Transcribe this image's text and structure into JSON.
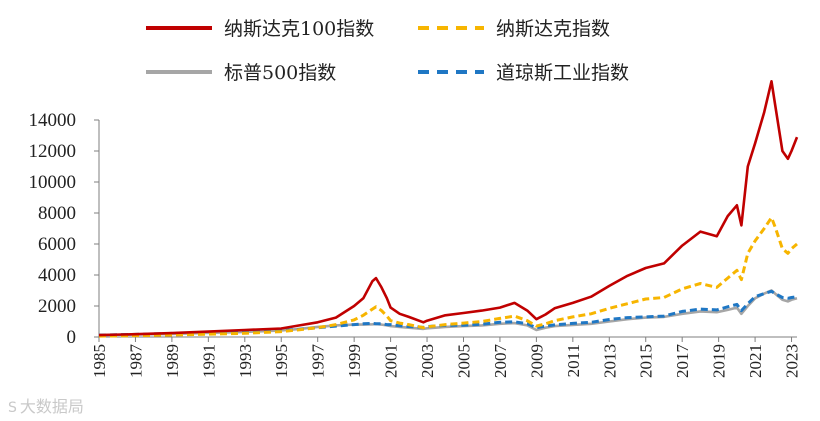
{
  "chart_data": {
    "type": "line",
    "title": "",
    "xlabel": "",
    "ylabel": "",
    "xlim": [
      1985,
      2023.3
    ],
    "ylim": [
      0,
      14000
    ],
    "yticks": [
      0,
      2000,
      4000,
      6000,
      8000,
      10000,
      12000,
      14000
    ],
    "xticks": [
      "1985",
      "1987",
      "1989",
      "1991",
      "1993",
      "1995",
      "1997",
      "1999",
      "2001",
      "2003",
      "2005",
      "2007",
      "2009",
      "2011",
      "2013",
      "2015",
      "2017",
      "2019",
      "2021",
      "2023"
    ],
    "grid": false,
    "legend_position": "top",
    "series": [
      {
        "name": "纳斯达克100指数",
        "color": "#c00000",
        "style": "solid",
        "x": [
          1985,
          1987,
          1989,
          1991,
          1993,
          1995,
          1996,
          1997,
          1998,
          1999,
          1999.5,
          2000,
          2000.2,
          2000.5,
          2000.8,
          2001,
          2001.5,
          2002,
          2002.8,
          2003,
          2004,
          2005,
          2006,
          2007,
          2007.8,
          2008.5,
          2009,
          2009.5,
          2010,
          2011,
          2012,
          2013,
          2014,
          2015,
          2016,
          2017,
          2018,
          2018.9,
          2019.5,
          2020,
          2020.25,
          2020.6,
          2021,
          2021.5,
          2021.9,
          2022.1,
          2022.5,
          2022.8,
          2023,
          2023.3
        ],
        "values": [
          120,
          180,
          250,
          350,
          450,
          550,
          750,
          950,
          1250,
          2000,
          2500,
          3600,
          3800,
          3200,
          2500,
          1900,
          1500,
          1300,
          950,
          1050,
          1400,
          1550,
          1700,
          1900,
          2200,
          1700,
          1150,
          1450,
          1850,
          2200,
          2600,
          3300,
          3950,
          4450,
          4750,
          5900,
          6800,
          6500,
          7800,
          8500,
          7200,
          11000,
          12500,
          14500,
          16500,
          15000,
          12000,
          11500,
          12000,
          12900
        ]
      },
      {
        "name": "纳斯达克指数",
        "color": "#f7b500",
        "style": "dashed",
        "x": [
          1985,
          1987,
          1989,
          1991,
          1993,
          1995,
          1996,
          1997,
          1998,
          1999,
          1999.5,
          2000,
          2000.2,
          2000.5,
          2000.8,
          2001,
          2001.5,
          2002,
          2002.8,
          2003,
          2004,
          2005,
          2006,
          2007,
          2007.8,
          2008.5,
          2009,
          2009.5,
          2010,
          2011,
          2012,
          2013,
          2014,
          2015,
          2016,
          2017,
          2018,
          2018.9,
          2019.5,
          2020,
          2020.25,
          2020.6,
          2021,
          2021.5,
          2021.9,
          2022.1,
          2022.5,
          2022.8,
          2023,
          2023.3
        ],
        "values": [
          60,
          90,
          130,
          180,
          240,
          350,
          470,
          600,
          800,
          1100,
          1400,
          1800,
          1950,
          1700,
          1350,
          1050,
          900,
          800,
          600,
          650,
          800,
          900,
          1000,
          1200,
          1350,
          1050,
          700,
          850,
          1050,
          1300,
          1500,
          1850,
          2150,
          2450,
          2550,
          3100,
          3450,
          3200,
          3800,
          4300,
          3700,
          5400,
          6200,
          7000,
          7700,
          7100,
          5700,
          5400,
          5700,
          6000
        ]
      },
      {
        "name": "标普500指数",
        "color": "#a6a6a6",
        "style": "solid",
        "x": [
          1985,
          1987,
          1989,
          1991,
          1993,
          1995,
          1996,
          1997,
          1998,
          1999,
          1999.5,
          2000,
          2000.2,
          2000.5,
          2000.8,
          2001,
          2001.5,
          2002,
          2002.8,
          2003,
          2004,
          2005,
          2006,
          2007,
          2007.8,
          2008.5,
          2009,
          2009.5,
          2010,
          2011,
          2012,
          2013,
          2014,
          2015,
          2016,
          2017,
          2018,
          2018.9,
          2019.5,
          2020,
          2020.25,
          2020.6,
          2021,
          2021.5,
          2021.9,
          2022.1,
          2022.5,
          2022.8,
          2023,
          2023.3
        ],
        "values": [
          120,
          160,
          200,
          270,
          330,
          420,
          520,
          650,
          750,
          800,
          800,
          820,
          830,
          800,
          750,
          700,
          650,
          600,
          520,
          560,
          650,
          700,
          750,
          850,
          900,
          750,
          450,
          600,
          700,
          780,
          850,
          1000,
          1150,
          1250,
          1300,
          1500,
          1650,
          1600,
          1750,
          1900,
          1500,
          2000,
          2500,
          2800,
          3000,
          2800,
          2400,
          2300,
          2400,
          2500
        ]
      },
      {
        "name": "道琼斯工业指数",
        "color": "#1f77c4",
        "style": "dashed",
        "x": [
          1985,
          1987,
          1989,
          1991,
          1993,
          1995,
          1996,
          1997,
          1998,
          1999,
          1999.5,
          2000,
          2000.2,
          2000.5,
          2000.8,
          2001,
          2001.5,
          2002,
          2002.8,
          2003,
          2004,
          2005,
          2006,
          2007,
          2007.8,
          2008.5,
          2009,
          2009.5,
          2010,
          2011,
          2012,
          2013,
          2014,
          2015,
          2016,
          2017,
          2018,
          2018.9,
          2019.5,
          2020,
          2020.25,
          2020.6,
          2021,
          2021.5,
          2021.9,
          2022.1,
          2022.5,
          2022.8,
          2023,
          2023.3
        ],
        "values": [
          120,
          170,
          230,
          280,
          340,
          420,
          500,
          600,
          700,
          800,
          850,
          880,
          850,
          850,
          800,
          800,
          720,
          680,
          620,
          670,
          750,
          760,
          820,
          950,
          980,
          850,
          600,
          700,
          780,
          880,
          950,
          1130,
          1250,
          1300,
          1350,
          1650,
          1800,
          1750,
          1950,
          2100,
          1700,
          2150,
          2600,
          2800,
          2950,
          2800,
          2550,
          2500,
          2550,
          2600
        ]
      }
    ]
  },
  "watermark": {
    "icon": "S",
    "text": "大数据局"
  }
}
